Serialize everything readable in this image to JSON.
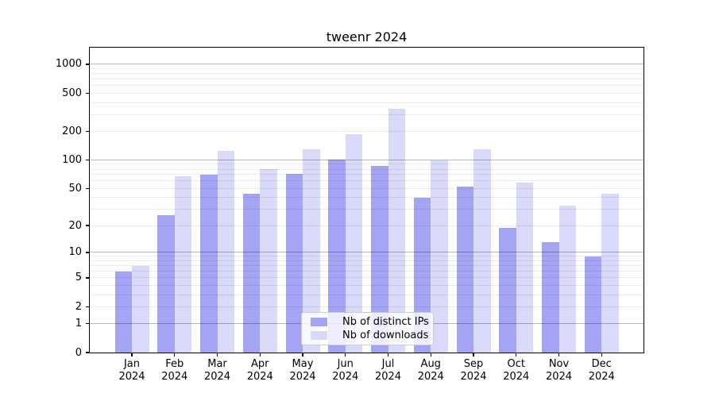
{
  "background": "#ffffff",
  "title": "tweenr 2024",
  "colors": {
    "bar_ips": "#a4a4f4",
    "bar_downloads": "#d9d9f9",
    "grid_major": "rgba(0,0,0,0.28)",
    "grid_minor": "rgba(0,0,0,0.08)",
    "axis": "#000000",
    "legend_border": "#cccccc"
  },
  "chart_data": {
    "type": "bar",
    "title": "tweenr 2024",
    "categories": [
      "Jan 2024",
      "Feb 2024",
      "Mar 2024",
      "Apr 2024",
      "May 2024",
      "Jun 2024",
      "Jul 2024",
      "Aug 2024",
      "Sep 2024",
      "Oct 2024",
      "Nov 2024",
      "Dec 2024"
    ],
    "series": [
      {
        "name": "Nb of distinct IPs",
        "color": "#a4a4f4",
        "values": [
          6,
          26,
          70,
          44,
          71,
          100,
          87,
          40,
          52,
          19,
          13,
          9
        ]
      },
      {
        "name": "Nb of downloads",
        "color": "#d9d9f9",
        "values": [
          7,
          67,
          125,
          80,
          129,
          188,
          345,
          99,
          130,
          58,
          33,
          44
        ]
      }
    ],
    "xlabel": "",
    "ylabel": "",
    "yscale": "log1p",
    "yticks": [
      0,
      1,
      2,
      5,
      10,
      20,
      50,
      100,
      200,
      500,
      1000
    ],
    "ylim": [
      0,
      1490
    ],
    "grid": true,
    "grid_over_bars": true,
    "legend_position": "lower center"
  }
}
